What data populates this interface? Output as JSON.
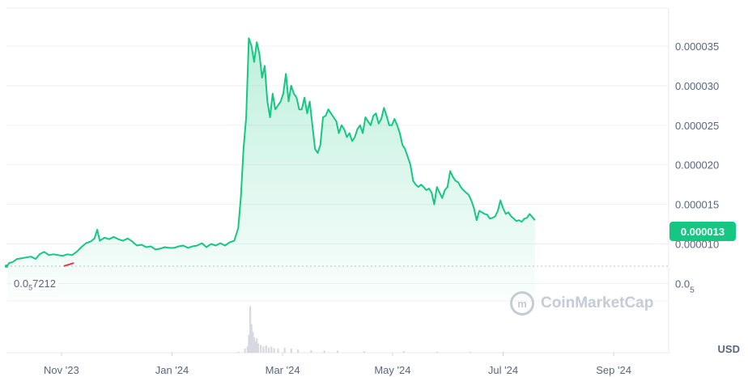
{
  "chart_data": {
    "type": "line",
    "unit": "USD",
    "current_price": "0.000013",
    "baseline_label": {
      "prefix": "0.0",
      "sub": "5",
      "suffix": "7212"
    },
    "baseline_value": 7.2e-06,
    "ylim": [
      2.8e-06,
      3.98e-05
    ],
    "y_ticks": [
      {
        "value": 3.5e-05,
        "label": "0.000035"
      },
      {
        "value": 3e-05,
        "label": "0.000030"
      },
      {
        "value": 2.5e-05,
        "label": "0.000025"
      },
      {
        "value": 2e-05,
        "label": "0.000020"
      },
      {
        "value": 1.5e-05,
        "label": "0.000015"
      },
      {
        "value": 1e-05,
        "label": "0.000010"
      },
      {
        "value": 5e-06,
        "label": "0.0",
        "sub": "5"
      }
    ],
    "x_ticks": [
      {
        "pos": 0.083,
        "label": "Nov '23"
      },
      {
        "pos": 0.25,
        "label": "Jan '24"
      },
      {
        "pos": 0.417,
        "label": "Mar '24"
      },
      {
        "pos": 0.583,
        "label": "May '24"
      },
      {
        "pos": 0.75,
        "label": "Jul '24"
      },
      {
        "pos": 0.917,
        "label": "Sep '24"
      }
    ],
    "grid": true,
    "colors": {
      "line": "#16c784",
      "start": "#ea3943",
      "badge": "#16c784",
      "volume": "#d6dae0"
    },
    "series": [
      {
        "values": [
          [
            0.001,
            7.2e-06
          ],
          [
            0.004,
            7.6e-06
          ],
          [
            0.009,
            7.7e-06
          ],
          [
            0.016,
            8.1e-06
          ],
          [
            0.023,
            8.2e-06
          ],
          [
            0.03,
            8.3e-06
          ],
          [
            0.037,
            8.4e-06
          ],
          [
            0.044,
            8.1e-06
          ],
          [
            0.05,
            8.7e-06
          ],
          [
            0.057,
            9e-06
          ],
          [
            0.064,
            8.6e-06
          ],
          [
            0.071,
            8.7e-06
          ],
          [
            0.078,
            8.6e-06
          ],
          [
            0.085,
            8.5e-06
          ],
          [
            0.092,
            8.7e-06
          ],
          [
            0.099,
            8.6e-06
          ],
          [
            0.106,
            9e-06
          ],
          [
            0.113,
            9.6e-06
          ],
          [
            0.12,
            1.01e-05
          ],
          [
            0.127,
            1.03e-05
          ],
          [
            0.133,
            1.07e-05
          ],
          [
            0.137,
            1.18e-05
          ],
          [
            0.141,
            1.04e-05
          ],
          [
            0.148,
            1.08e-05
          ],
          [
            0.155,
            1.06e-05
          ],
          [
            0.162,
            1.09e-05
          ],
          [
            0.169,
            1.06e-05
          ],
          [
            0.176,
            1.04e-05
          ],
          [
            0.183,
            1.07e-05
          ],
          [
            0.19,
            1.03e-05
          ],
          [
            0.197,
            9.8e-06
          ],
          [
            0.204,
            9.9e-06
          ],
          [
            0.211,
            9.6e-06
          ],
          [
            0.218,
            9.7e-06
          ],
          [
            0.225,
            9.3e-06
          ],
          [
            0.232,
            9.4e-06
          ],
          [
            0.239,
            9.6e-06
          ],
          [
            0.246,
            9.5e-06
          ],
          [
            0.253,
            9.5e-06
          ],
          [
            0.26,
            9.7e-06
          ],
          [
            0.267,
            9.8e-06
          ],
          [
            0.274,
            9.5e-06
          ],
          [
            0.281,
            9.7e-06
          ],
          [
            0.288,
            9.8e-06
          ],
          [
            0.295,
            1.01e-05
          ],
          [
            0.302,
            9.6e-06
          ],
          [
            0.309,
            1e-05
          ],
          [
            0.316,
            9.8e-06
          ],
          [
            0.323,
            1.01e-05
          ],
          [
            0.33,
            9.8e-06
          ],
          [
            0.337,
            1.02e-05
          ],
          [
            0.344,
            1.04e-05
          ],
          [
            0.35,
            1.2e-05
          ],
          [
            0.354,
            1.6e-05
          ],
          [
            0.358,
            2.2e-05
          ],
          [
            0.362,
            2.6e-05
          ],
          [
            0.366,
            3.6e-05
          ],
          [
            0.37,
            3.5e-05
          ],
          [
            0.374,
            3.3e-05
          ],
          [
            0.378,
            3.55e-05
          ],
          [
            0.382,
            3.4e-05
          ],
          [
            0.386,
            3.1e-05
          ],
          [
            0.39,
            3.25e-05
          ],
          [
            0.394,
            2.8e-05
          ],
          [
            0.398,
            2.6e-05
          ],
          [
            0.402,
            2.9e-05
          ],
          [
            0.406,
            2.7e-05
          ],
          [
            0.41,
            2.75e-05
          ],
          [
            0.414,
            2.8e-05
          ],
          [
            0.418,
            2.9e-05
          ],
          [
            0.422,
            3.15e-05
          ],
          [
            0.426,
            2.8e-05
          ],
          [
            0.43,
            3e-05
          ],
          [
            0.434,
            2.9e-05
          ],
          [
            0.438,
            2.85e-05
          ],
          [
            0.442,
            2.7e-05
          ],
          [
            0.446,
            2.7e-05
          ],
          [
            0.45,
            2.85e-05
          ],
          [
            0.454,
            2.65e-05
          ],
          [
            0.458,
            2.8e-05
          ],
          [
            0.462,
            2.5e-05
          ],
          [
            0.466,
            2.2e-05
          ],
          [
            0.47,
            2.15e-05
          ],
          [
            0.474,
            2.25e-05
          ],
          [
            0.478,
            2.6e-05
          ],
          [
            0.482,
            2.62e-05
          ],
          [
            0.486,
            2.7e-05
          ],
          [
            0.49,
            2.65e-05
          ],
          [
            0.494,
            2.6e-05
          ],
          [
            0.498,
            2.55e-05
          ],
          [
            0.502,
            2.4e-05
          ],
          [
            0.506,
            2.5e-05
          ],
          [
            0.51,
            2.45e-05
          ],
          [
            0.514,
            2.35e-05
          ],
          [
            0.518,
            2.4e-05
          ],
          [
            0.522,
            2.3e-05
          ],
          [
            0.526,
            2.35e-05
          ],
          [
            0.53,
            2.45e-05
          ],
          [
            0.534,
            2.5e-05
          ],
          [
            0.538,
            2.4e-05
          ],
          [
            0.542,
            2.6e-05
          ],
          [
            0.546,
            2.55e-05
          ],
          [
            0.55,
            2.5e-05
          ],
          [
            0.554,
            2.62e-05
          ],
          [
            0.558,
            2.65e-05
          ],
          [
            0.562,
            2.52e-05
          ],
          [
            0.566,
            2.58e-05
          ],
          [
            0.57,
            2.72e-05
          ],
          [
            0.574,
            2.62e-05
          ],
          [
            0.578,
            2.5e-05
          ],
          [
            0.582,
            2.5e-05
          ],
          [
            0.586,
            2.58e-05
          ],
          [
            0.59,
            2.5e-05
          ],
          [
            0.594,
            2.4e-05
          ],
          [
            0.598,
            2.25e-05
          ],
          [
            0.602,
            2.2e-05
          ],
          [
            0.606,
            2.1e-05
          ],
          [
            0.61,
            2e-05
          ],
          [
            0.614,
            1.8e-05
          ],
          [
            0.618,
            1.75e-05
          ],
          [
            0.622,
            1.72e-05
          ],
          [
            0.626,
            1.75e-05
          ],
          [
            0.63,
            1.72e-05
          ],
          [
            0.634,
            1.68e-05
          ],
          [
            0.638,
            1.7e-05
          ],
          [
            0.642,
            1.65e-05
          ],
          [
            0.646,
            1.5e-05
          ],
          [
            0.65,
            1.72e-05
          ],
          [
            0.654,
            1.65e-05
          ],
          [
            0.658,
            1.58e-05
          ],
          [
            0.662,
            1.68e-05
          ],
          [
            0.666,
            1.72e-05
          ],
          [
            0.67,
            1.92e-05
          ],
          [
            0.674,
            1.85e-05
          ],
          [
            0.678,
            1.8e-05
          ],
          [
            0.682,
            1.78e-05
          ],
          [
            0.686,
            1.72e-05
          ],
          [
            0.69,
            1.68e-05
          ],
          [
            0.694,
            1.65e-05
          ],
          [
            0.698,
            1.62e-05
          ],
          [
            0.702,
            1.55e-05
          ],
          [
            0.706,
            1.45e-05
          ],
          [
            0.71,
            1.3e-05
          ],
          [
            0.714,
            1.42e-05
          ],
          [
            0.718,
            1.4e-05
          ],
          [
            0.722,
            1.38e-05
          ],
          [
            0.726,
            1.37e-05
          ],
          [
            0.73,
            1.32e-05
          ],
          [
            0.734,
            1.33e-05
          ],
          [
            0.738,
            1.35e-05
          ],
          [
            0.742,
            1.42e-05
          ],
          [
            0.746,
            1.55e-05
          ],
          [
            0.75,
            1.45e-05
          ],
          [
            0.754,
            1.38e-05
          ],
          [
            0.758,
            1.4e-05
          ],
          [
            0.762,
            1.35e-05
          ],
          [
            0.766,
            1.32e-05
          ],
          [
            0.77,
            1.29e-05
          ],
          [
            0.774,
            1.3e-05
          ],
          [
            0.778,
            1.28e-05
          ],
          [
            0.782,
            1.32e-05
          ],
          [
            0.786,
            1.33e-05
          ],
          [
            0.79,
            1.38e-05
          ],
          [
            0.794,
            1.34e-05
          ],
          [
            0.798,
            1.3e-05
          ]
        ]
      }
    ],
    "volume": [
      [
        0.35,
        0.02
      ],
      [
        0.36,
        0.08
      ],
      [
        0.364,
        0.12
      ],
      [
        0.366,
        0.35
      ],
      [
        0.368,
        0.9
      ],
      [
        0.37,
        0.55
      ],
      [
        0.372,
        0.4
      ],
      [
        0.374,
        0.3
      ],
      [
        0.376,
        0.22
      ],
      [
        0.378,
        0.28
      ],
      [
        0.38,
        0.18
      ],
      [
        0.384,
        0.15
      ],
      [
        0.388,
        0.12
      ],
      [
        0.392,
        0.14
      ],
      [
        0.396,
        0.1
      ],
      [
        0.4,
        0.12
      ],
      [
        0.404,
        0.09
      ],
      [
        0.41,
        0.08
      ],
      [
        0.42,
        0.1
      ],
      [
        0.43,
        0.08
      ],
      [
        0.44,
        0.06
      ],
      [
        0.46,
        0.05
      ],
      [
        0.48,
        0.04
      ],
      [
        0.5,
        0.04
      ],
      [
        0.54,
        0.03
      ],
      [
        0.6,
        0.03
      ],
      [
        0.65,
        0.02
      ],
      [
        0.7,
        0.02
      ],
      [
        0.75,
        0.02
      ]
    ]
  },
  "watermark": {
    "brand": "CoinMarketCap",
    "icon": "coinmarketcap-logo-icon",
    "glyph": "m"
  }
}
